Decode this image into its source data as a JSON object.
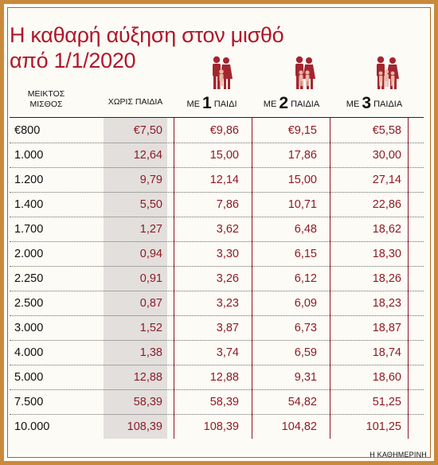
{
  "chart_data": {
    "type": "table",
    "title_lines": [
      "Η καθαρή αύξηση στον μισθό",
      "από 1/1/2020"
    ],
    "salary_header": [
      "ΜΕΙΚΤΟΣ",
      "ΜΙΣΘΟΣ"
    ],
    "columns": [
      {
        "prefix": "ΧΩΡΙΣ ΠΑΙΔΙΑ",
        "number": "",
        "suffix": ""
      },
      {
        "prefix": "ΜΕ ",
        "number": "1",
        "suffix": " ΠΑΙΔΙ"
      },
      {
        "prefix": "ΜΕ ",
        "number": "2",
        "suffix": " ΠΑΙΔΙΑ"
      },
      {
        "prefix": "ΜΕ ",
        "number": "3",
        "suffix": " ΠΑΙΔΙΑ"
      }
    ],
    "rows": [
      {
        "salary": "€800",
        "values": [
          "€7,50",
          "€9,86",
          "€9,15",
          "€5,58"
        ]
      },
      {
        "salary": "1.000",
        "values": [
          "12,64",
          "15,00",
          "17,86",
          "30,00"
        ]
      },
      {
        "salary": "1.200",
        "values": [
          "9,79",
          "12,14",
          "15,00",
          "27,14"
        ]
      },
      {
        "salary": "1.400",
        "values": [
          "5,50",
          "7,86",
          "10,71",
          "22,86"
        ]
      },
      {
        "salary": "1.700",
        "values": [
          "1,27",
          "3,62",
          "6,48",
          "18,62"
        ]
      },
      {
        "salary": "2.000",
        "values": [
          "0,94",
          "3,30",
          "6,15",
          "18,30"
        ]
      },
      {
        "salary": "2.250",
        "values": [
          "0,91",
          "3,26",
          "6,12",
          "18,26"
        ]
      },
      {
        "salary": "2.500",
        "values": [
          "0,87",
          "3,23",
          "6,09",
          "18,23"
        ]
      },
      {
        "salary": "3.000",
        "values": [
          "1,52",
          "3,87",
          "6,73",
          "18,87"
        ]
      },
      {
        "salary": "4.000",
        "values": [
          "1,38",
          "3,74",
          "6,59",
          "18,74"
        ]
      },
      {
        "salary": "5.000",
        "values": [
          "12,88",
          "12,88",
          "9,31",
          "18,60"
        ]
      },
      {
        "salary": "7.500",
        "values": [
          "58,39",
          "58,39",
          "54,82",
          "51,25"
        ]
      },
      {
        "salary": "10.000",
        "values": [
          "108,39",
          "108,39",
          "104,82",
          "101,25"
        ]
      }
    ]
  },
  "source": "Η ΚΑΘΗΜΕΡΙΝΗ",
  "colors": {
    "accent": "#b0172a",
    "values": "#8e1b25",
    "border": "#c98a3b",
    "shade": "#e2dfdd"
  },
  "icons": [
    "family-1-child-icon",
    "family-2-children-icon",
    "family-3-children-icon"
  ]
}
